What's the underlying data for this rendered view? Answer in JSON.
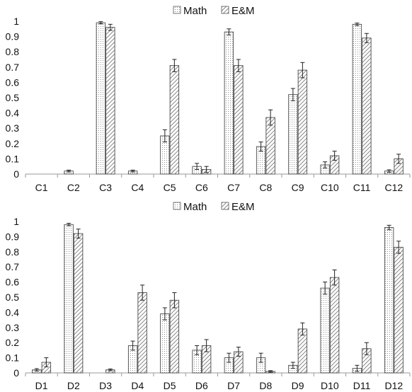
{
  "chart_data": [
    {
      "type": "bar",
      "categories": [
        "C1",
        "C2",
        "C3",
        "C4",
        "C5",
        "C6",
        "C7",
        "C8",
        "C9",
        "C10",
        "C11",
        "C12"
      ],
      "series": [
        {
          "name": "Math",
          "values": [
            0,
            0.02,
            0.99,
            0.02,
            0.25,
            0.05,
            0.93,
            0.18,
            0.52,
            0.06,
            0.98,
            0.02
          ],
          "errors": [
            0,
            0.006,
            0.007,
            0.006,
            0.04,
            0.02,
            0.02,
            0.03,
            0.04,
            0.02,
            0.008,
            0.008
          ]
        },
        {
          "name": "E&M",
          "values": [
            0,
            0,
            0.96,
            0,
            0.71,
            0.03,
            0.71,
            0.37,
            0.68,
            0.12,
            0.89,
            0.1
          ],
          "errors": [
            0,
            0,
            0.02,
            0,
            0.04,
            0.02,
            0.04,
            0.05,
            0.05,
            0.03,
            0.03,
            0.03
          ]
        }
      ],
      "yticks": [
        "0",
        "0.1",
        "0.2",
        "0.3",
        "0.4",
        "0.5",
        "0.6",
        "0.7",
        "0.8",
        "0.9",
        "1"
      ],
      "ylim": [
        0,
        1
      ],
      "legend": "top-center",
      "grid": false
    },
    {
      "type": "bar",
      "categories": [
        "D1",
        "D2",
        "D3",
        "D4",
        "D5",
        "D6",
        "D7",
        "D8",
        "D9",
        "D10",
        "D11",
        "D12"
      ],
      "series": [
        {
          "name": "Math",
          "values": [
            0.02,
            0.98,
            0,
            0.18,
            0.39,
            0.15,
            0.1,
            0.1,
            0.05,
            0.56,
            0.03,
            0.96
          ],
          "errors": [
            0.008,
            0.008,
            0,
            0.03,
            0.04,
            0.03,
            0.03,
            0.03,
            0.02,
            0.04,
            0.02,
            0.015
          ]
        },
        {
          "name": "E&M",
          "values": [
            0.07,
            0.92,
            0.02,
            0.53,
            0.48,
            0.18,
            0.14,
            0.01,
            0.29,
            0.63,
            0.16,
            0.83
          ],
          "errors": [
            0.03,
            0.03,
            0.006,
            0.05,
            0.05,
            0.04,
            0.03,
            0.005,
            0.04,
            0.05,
            0.04,
            0.04
          ]
        }
      ],
      "yticks": [
        "0",
        "0.1",
        "0.2",
        "0.3",
        "0.4",
        "0.5",
        "0.6",
        "0.7",
        "0.8",
        "0.9",
        "1"
      ],
      "ylim": [
        0,
        1
      ],
      "legend": "top-center",
      "grid": false
    }
  ]
}
